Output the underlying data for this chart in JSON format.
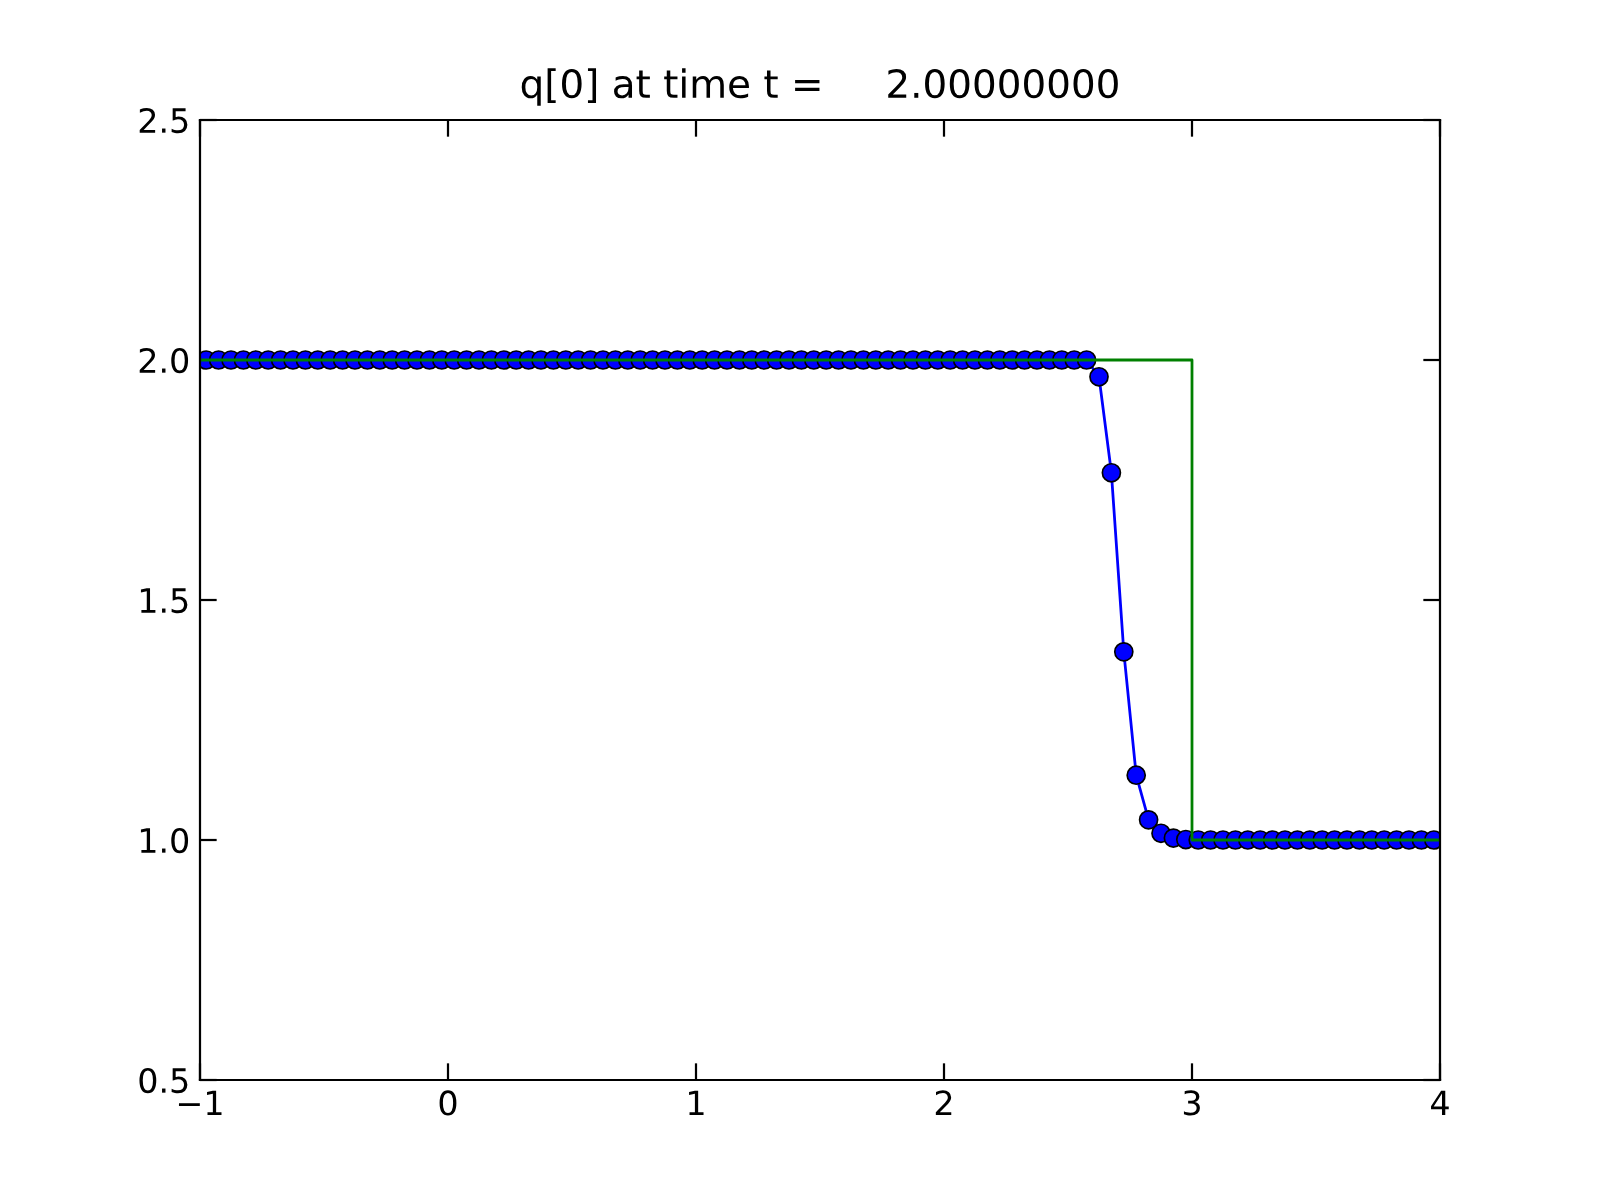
{
  "chart_data": {
    "type": "line",
    "title": "q[0] at time t =     2.00000000",
    "series": [
      {
        "color": "#0000ff",
        "marker": "circle",
        "x": [
          -0.975,
          -0.925,
          -0.875,
          -0.825,
          -0.775,
          -0.725,
          -0.675,
          -0.625,
          -0.575,
          -0.525,
          -0.475,
          -0.425,
          -0.375,
          -0.325,
          -0.275,
          -0.225,
          -0.175,
          -0.125,
          -0.075,
          -0.025,
          0.025,
          0.075,
          0.125,
          0.175,
          0.225,
          0.275,
          0.325,
          0.375,
          0.425,
          0.475,
          0.525,
          0.575,
          0.625,
          0.675,
          0.725,
          0.775,
          0.825,
          0.875,
          0.925,
          0.975,
          1.025,
          1.075,
          1.125,
          1.175,
          1.225,
          1.275,
          1.325,
          1.375,
          1.425,
          1.475,
          1.525,
          1.575,
          1.625,
          1.675,
          1.725,
          1.775,
          1.825,
          1.875,
          1.925,
          1.975,
          2.025,
          2.075,
          2.125,
          2.175,
          2.225,
          2.275,
          2.325,
          2.375,
          2.425,
          2.475,
          2.525,
          2.575,
          2.625,
          2.675,
          2.725,
          2.775,
          2.825,
          2.875,
          2.925,
          2.975,
          3.025,
          3.075,
          3.125,
          3.175,
          3.225,
          3.275,
          3.325,
          3.375,
          3.425,
          3.475,
          3.525,
          3.575,
          3.625,
          3.675,
          3.725,
          3.775,
          3.825,
          3.875,
          3.925,
          3.975
        ],
        "values": [
          2,
          2,
          2,
          2,
          2,
          2,
          2,
          2,
          2,
          2,
          2,
          2,
          2,
          2,
          2,
          2,
          2,
          2,
          2,
          2,
          2,
          2,
          2,
          2,
          2,
          2,
          2,
          2,
          2,
          2,
          2,
          2,
          2,
          2,
          2,
          2,
          2,
          2,
          2,
          2,
          2,
          2,
          2,
          2,
          2,
          2,
          2,
          2,
          2,
          2,
          2,
          2,
          2,
          2,
          2,
          2,
          2,
          2,
          2,
          2,
          2,
          2,
          2,
          2,
          2,
          2,
          2,
          2,
          2,
          2,
          2,
          2,
          1.965,
          1.765,
          1.392,
          1.135,
          1.042,
          1.014,
          1.004,
          1.001,
          1,
          1,
          1,
          1,
          1,
          1,
          1,
          1,
          1,
          1,
          1,
          1,
          1,
          1,
          1,
          1,
          1,
          1,
          1,
          1
        ]
      },
      {
        "color": "#008000",
        "marker": "none",
        "x": [
          -1,
          3,
          3,
          4
        ],
        "values": [
          2,
          2,
          1,
          1
        ]
      }
    ],
    "xlim": [
      -1,
      4
    ],
    "xticks": [
      {
        "value": -1,
        "label": "−1"
      },
      0,
      1,
      2,
      3,
      4
    ],
    "ylim": [
      0.5,
      2.5
    ],
    "yticks": [
      {
        "value": 0.5,
        "label": "0.5"
      },
      {
        "value": 1,
        "label": "1.0"
      },
      {
        "value": 1.5,
        "label": "1.5"
      },
      {
        "value": 2,
        "label": "2.0"
      },
      {
        "value": 2.5,
        "label": "2.5"
      }
    ],
    "grid": false,
    "legend": false
  }
}
